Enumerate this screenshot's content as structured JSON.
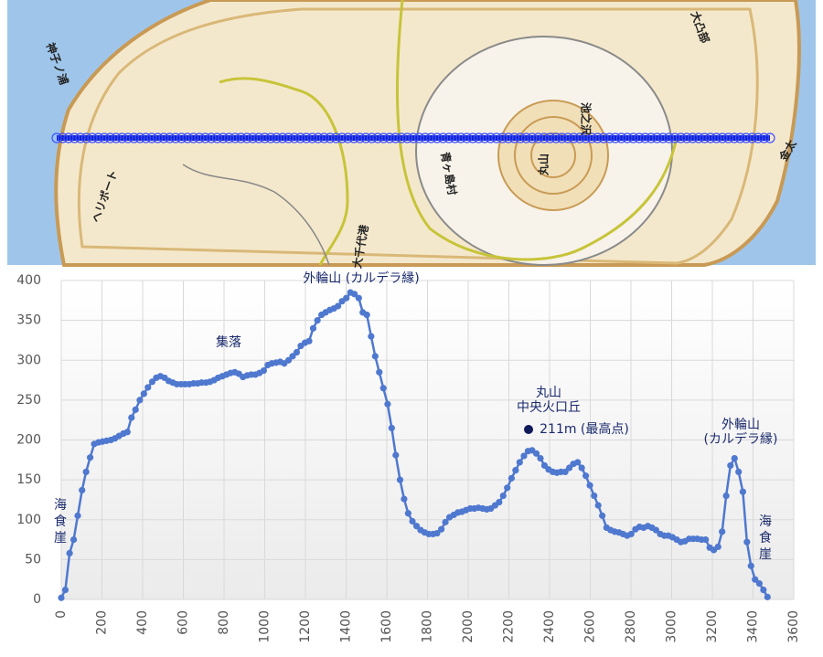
{
  "map": {
    "labels": [
      "ヘリポート",
      "丸山",
      "池之沢",
      "金太",
      "神子ノ浦",
      "大凸部",
      "青ヶ島村",
      "大千代港"
    ]
  },
  "chart_data": {
    "type": "scatter-line",
    "color": "#4f78cf",
    "grid": true,
    "annotations": [
      [
        "外輪山 (カルデラ縁)"
      ],
      [
        "集落"
      ],
      [
        "丸山",
        "中央火口丘"
      ],
      [
        "211m (最高点)"
      ],
      [
        "外輪山",
        "(カルデラ縁)"
      ],
      [
        "海",
        "食",
        "崖"
      ],
      [
        "海",
        "食",
        "崖"
      ]
    ],
    "xlim": [
      0,
      3600
    ],
    "xticks": [
      0,
      200,
      400,
      600,
      800,
      1000,
      1200,
      1400,
      1600,
      1800,
      2000,
      2200,
      2400,
      2600,
      2800,
      3000,
      3200,
      3400,
      3600
    ],
    "ylim": [
      0,
      400
    ],
    "yticks": [
      0,
      50,
      100,
      150,
      200,
      250,
      300,
      350,
      400
    ],
    "x": [
      0,
      20,
      41,
      61,
      81,
      102,
      122,
      142,
      162,
      183,
      203,
      223,
      244,
      264,
      284,
      305,
      325,
      345,
      365,
      386,
      406,
      426,
      447,
      467,
      487,
      508,
      528,
      548,
      568,
      589,
      609,
      629,
      650,
      670,
      690,
      711,
      731,
      751,
      771,
      792,
      812,
      832,
      853,
      873,
      893,
      914,
      934,
      954,
      974,
      995,
      1015,
      1035,
      1056,
      1076,
      1096,
      1117,
      1137,
      1157,
      1177,
      1198,
      1218,
      1238,
      1259,
      1279,
      1299,
      1320,
      1340,
      1360,
      1380,
      1401,
      1421,
      1441,
      1462,
      1482,
      1502,
      1523,
      1543,
      1563,
      1583,
      1604,
      1624,
      1644,
      1665,
      1685,
      1705,
      1726,
      1746,
      1766,
      1786,
      1807,
      1827,
      1847,
      1868,
      1888,
      1908,
      1929,
      1949,
      1969,
      1989,
      2010,
      2030,
      2050,
      2071,
      2091,
      2111,
      2132,
      2152,
      2172,
      2192,
      2213,
      2233,
      2253,
      2274,
      2294,
      2314,
      2335,
      2355,
      2375,
      2395,
      2416,
      2436,
      2456,
      2477,
      2497,
      2517,
      2538,
      2558,
      2578,
      2598,
      2619,
      2639,
      2659,
      2680,
      2700,
      2720,
      2741,
      2761,
      2781,
      2801,
      2822,
      2842,
      2862,
      2883,
      2903,
      2923,
      2944,
      2964,
      2984,
      3004,
      3025,
      3045,
      3065,
      3086,
      3106,
      3126,
      3147,
      3167,
      3187,
      3207,
      3228,
      3248,
      3268,
      3289,
      3309,
      3329,
      3350,
      3370,
      3390,
      3410,
      3431,
      3451,
      3471
    ],
    "values": [
      2,
      12,
      58,
      75,
      105,
      137,
      160,
      178,
      195,
      197,
      198,
      199,
      200,
      202,
      205,
      208,
      210,
      228,
      238,
      250,
      258,
      266,
      273,
      278,
      280,
      278,
      274,
      272,
      270,
      270,
      270,
      270,
      271,
      271,
      272,
      272,
      273,
      275,
      278,
      280,
      282,
      284,
      285,
      283,
      279,
      281,
      282,
      282,
      284,
      287,
      294,
      296,
      297,
      298,
      296,
      300,
      305,
      310,
      318,
      322,
      324,
      340,
      350,
      357,
      360,
      363,
      365,
      368,
      374,
      378,
      385,
      383,
      378,
      360,
      357,
      330,
      305,
      285,
      265,
      245,
      215,
      181,
      150,
      126,
      108,
      98,
      92,
      87,
      84,
      82,
      82,
      83,
      88,
      97,
      103,
      106,
      109,
      110,
      112,
      114,
      114,
      115,
      114,
      113,
      114,
      118,
      122,
      130,
      140,
      152,
      162,
      172,
      180,
      186,
      187,
      183,
      177,
      168,
      163,
      160,
      159,
      160,
      160,
      165,
      170,
      172,
      165,
      155,
      143,
      130,
      118,
      105,
      90,
      87,
      85,
      84,
      82,
      80,
      82,
      88,
      91,
      90,
      92,
      90,
      87,
      82,
      80,
      80,
      78,
      75,
      72,
      73,
      76,
      76,
      76,
      75,
      75,
      65,
      62,
      66,
      85,
      130,
      168,
      177,
      160,
      135,
      72,
      42,
      25,
      20,
      12,
      3
    ]
  }
}
